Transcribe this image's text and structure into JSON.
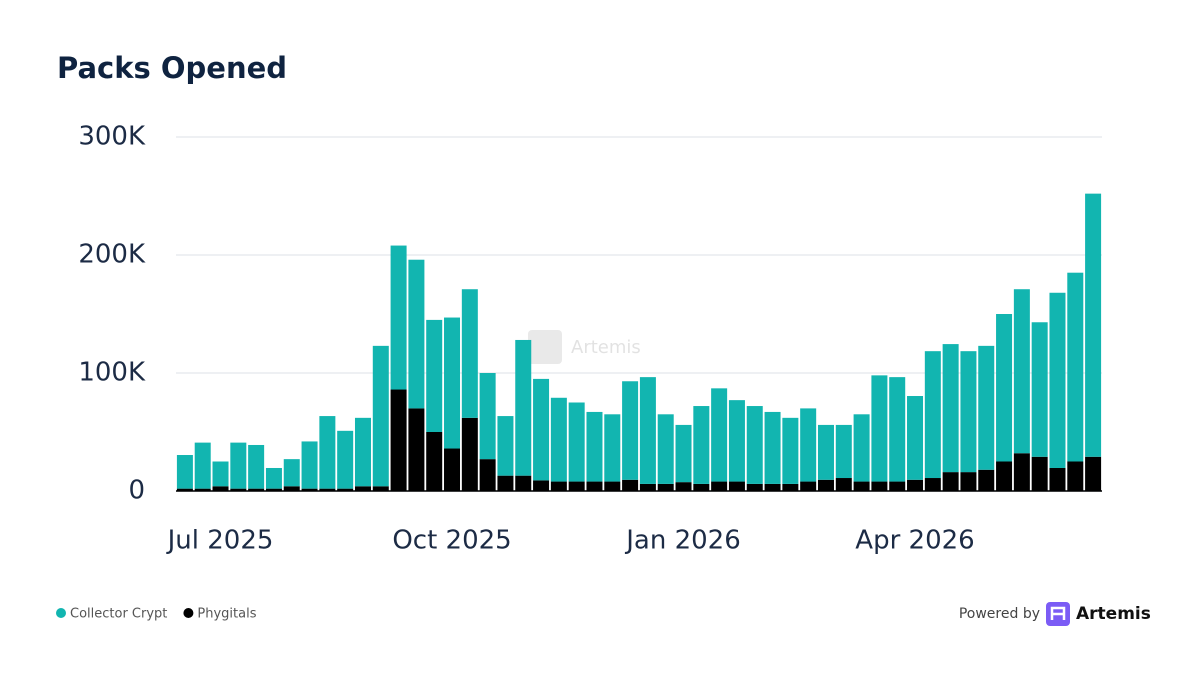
{
  "chart_data": {
    "type": "stacked_bar",
    "title": "Packs Opened",
    "categories": [
      null,
      null,
      "Jul 2025",
      null,
      null,
      null,
      null,
      null,
      null,
      null,
      null,
      null,
      null,
      null,
      null,
      "Oct 2025",
      null,
      null,
      null,
      null,
      null,
      null,
      null,
      null,
      null,
      null,
      null,
      null,
      "Jan 2026",
      null,
      null,
      null,
      null,
      null,
      null,
      null,
      null,
      null,
      null,
      null,
      null,
      "Apr 2026",
      null,
      null,
      null,
      null,
      null,
      null,
      null,
      null,
      null,
      null
    ],
    "series": [
      {
        "name": "Collector Crypt",
        "color": "#12b5b0",
        "values": [
          28500,
          39000,
          21000,
          39000,
          37000,
          17500,
          23000,
          40000,
          61500,
          49000,
          58000,
          119000,
          122000,
          126000,
          95000,
          111000,
          109000,
          73000,
          50500,
          115000,
          86000,
          71000,
          67000,
          59000,
          57000,
          83500,
          90500,
          59000,
          48500,
          66000,
          79000,
          69000,
          66000,
          61000,
          56000,
          62000,
          46500,
          45000,
          57000,
          90000,
          88500,
          71000,
          107500,
          108500,
          102500,
          105000,
          125000,
          139000,
          114000,
          148500,
          160000,
          223000
        ]
      },
      {
        "name": "Phygitals",
        "color": "#000000",
        "values": [
          2000,
          2000,
          4000,
          2000,
          2000,
          2000,
          4000,
          2000,
          2000,
          2000,
          4000,
          4000,
          86000,
          70000,
          50000,
          36000,
          62000,
          27000,
          13000,
          13000,
          9000,
          8000,
          8000,
          8000,
          8000,
          9500,
          6000,
          6000,
          7500,
          6000,
          8000,
          8000,
          6000,
          6000,
          6000,
          8000,
          9500,
          11000,
          8000,
          8000,
          8000,
          9500,
          11000,
          16000,
          16000,
          18000,
          25000,
          32000,
          29000,
          19500,
          25000,
          29000
        ]
      }
    ],
    "ylim": [
      0,
      300000
    ],
    "yticks": [
      0,
      {
        "value": 100000,
        "label": "100K"
      },
      {
        "value": 200000,
        "label": "200K"
      },
      {
        "value": 300000,
        "label": "300K"
      }
    ],
    "grid": true,
    "legend": "bottom-left"
  },
  "watermark": "Artemis",
  "footer": {
    "powered_by": "Powered by",
    "brand": "Artemis"
  }
}
